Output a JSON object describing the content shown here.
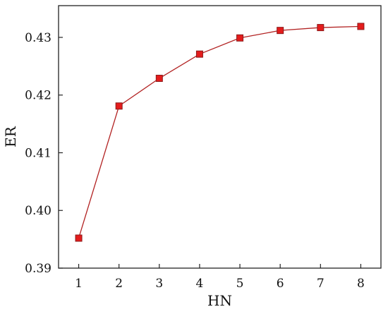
{
  "chart_data": {
    "type": "line",
    "title": "",
    "xlabel": "HN",
    "ylabel": "ER",
    "x": [
      1,
      2,
      3,
      4,
      5,
      6,
      7,
      8
    ],
    "series": [
      {
        "values": [
          0.3952,
          0.4181,
          0.4229,
          0.4271,
          0.4299,
          0.4312,
          0.4317,
          0.4319
        ]
      }
    ],
    "xlim": [
      0.5,
      8.5
    ],
    "ylim": [
      0.39,
      0.4355
    ],
    "xticks": [
      1,
      2,
      3,
      4,
      5,
      6,
      7,
      8
    ],
    "xtick_labels": [
      "1",
      "2",
      "3",
      "4",
      "5",
      "6",
      "7",
      "8"
    ],
    "yticks": [
      0.39,
      0.4,
      0.41,
      0.42,
      0.43
    ],
    "ytick_labels": [
      "0.39",
      "0.40",
      "0.41",
      "0.42",
      "0.43"
    ],
    "grid": false,
    "legend": "none",
    "line_color": "#b22222",
    "marker_color": "#e41c1c",
    "marker_edge_color": "#8b1a1a",
    "marker": "square"
  }
}
